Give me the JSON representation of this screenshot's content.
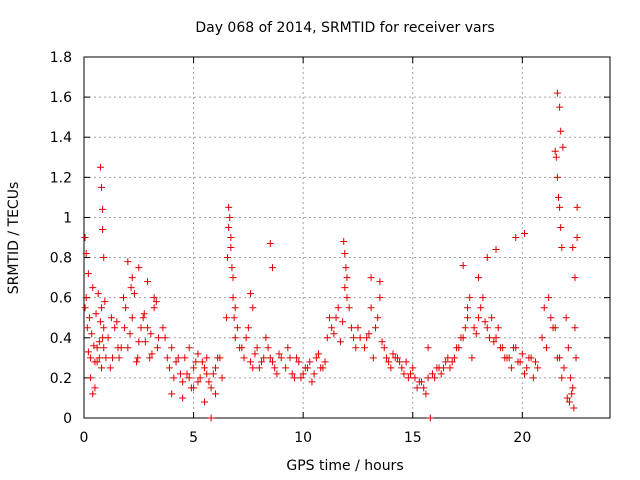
{
  "chart_data": {
    "type": "scatter",
    "title": "Day 068 of 2014, SRMTID for receiver vars",
    "xlabel": "GPS time / hours",
    "ylabel": "SRMTID / TECUs",
    "xlim": [
      0,
      24
    ],
    "ylim": [
      0,
      1.8
    ],
    "x_ticks": [
      0,
      5,
      10,
      15,
      20
    ],
    "y_ticks": [
      0,
      0.2,
      0.4,
      0.6,
      0.8,
      1,
      1.2,
      1.4,
      1.6,
      1.8
    ],
    "x_tick_labels": [
      "0",
      "5",
      "10",
      "15",
      "20"
    ],
    "y_tick_labels": [
      "0",
      "0.2",
      "0.4",
      "0.6",
      "0.8",
      "1",
      "1.2",
      "1.4",
      "1.6",
      "1.8"
    ],
    "grid": true,
    "marker": "+",
    "color": "#e00000",
    "series": [
      {
        "name": "SRMTID",
        "x": [
          0.05,
          0.1,
          0.15,
          0.2,
          0.25,
          0.3,
          0.35,
          0.4,
          0.45,
          0.5,
          0.55,
          0.6,
          0.65,
          0.7,
          0.75,
          0.8,
          0.85,
          0.9,
          0.95,
          1.0,
          0.1,
          0.3,
          0.5,
          0.7,
          0.9,
          0.2,
          0.4,
          0.6,
          0.8,
          0.05,
          0.75,
          0.8,
          0.85,
          0.85,
          0.9,
          1.1,
          1.3,
          1.5,
          1.7,
          1.9,
          2.1,
          2.3,
          2.5,
          2.7,
          2.9,
          3.1,
          3.3,
          1.2,
          1.4,
          1.6,
          1.8,
          2.0,
          2.2,
          2.4,
          2.6,
          2.8,
          3.0,
          3.2,
          3.4,
          1.25,
          1.55,
          1.85,
          2.15,
          2.45,
          2.75,
          3.05,
          3.35,
          2.0,
          2.2,
          2.5,
          2.9,
          3.2,
          3.6,
          3.8,
          4.0,
          4.2,
          4.4,
          4.6,
          4.8,
          5.0,
          5.2,
          5.4,
          5.6,
          5.8,
          6.0,
          6.2,
          3.7,
          3.9,
          4.1,
          4.3,
          4.5,
          4.7,
          4.9,
          5.1,
          5.3,
          5.5,
          5.7,
          5.9,
          6.1,
          6.3,
          4.0,
          4.5,
          5.0,
          5.5,
          6.0,
          4.8,
          5.2,
          5.6,
          5.8,
          6.5,
          6.55,
          6.6,
          6.65,
          6.7,
          6.75,
          6.8,
          6.85,
          6.9,
          6.6,
          6.7,
          6.8,
          6.9,
          7.0,
          7.2,
          7.4,
          7.6,
          7.8,
          8.0,
          8.2,
          8.4,
          8.6,
          8.8,
          9.0,
          7.1,
          7.3,
          7.5,
          7.7,
          7.9,
          8.1,
          8.3,
          8.5,
          8.7,
          8.9,
          7.6,
          7.7,
          8.5,
          8.6,
          9.2,
          9.4,
          9.6,
          9.8,
          10.0,
          10.2,
          10.4,
          10.6,
          10.8,
          11.0,
          9.3,
          9.5,
          9.7,
          9.9,
          10.1,
          10.3,
          10.5,
          10.7,
          10.9,
          11.1,
          11.2,
          11.4,
          11.6,
          11.8,
          12.0,
          12.2,
          12.4,
          12.6,
          11.3,
          11.5,
          11.7,
          11.9,
          12.1,
          12.3,
          12.5,
          11.85,
          11.9,
          11.95,
          12.0,
          12.8,
          13.0,
          13.2,
          13.4,
          13.6,
          13.8,
          14.0,
          14.2,
          12.9,
          13.1,
          13.3,
          13.5,
          13.7,
          13.9,
          14.1,
          13.1,
          13.5,
          14.3,
          14.5,
          14.7,
          14.9,
          15.1,
          15.3,
          15.5,
          15.7,
          15.9,
          16.1,
          14.4,
          14.6,
          14.8,
          15.0,
          15.2,
          15.4,
          15.6,
          15.8,
          16.0,
          16.2,
          15.7,
          16.3,
          16.5,
          16.7,
          16.9,
          17.1,
          17.3,
          17.5,
          17.7,
          16.4,
          16.6,
          16.8,
          17.0,
          17.2,
          17.4,
          17.6,
          17.3,
          17.5,
          17.8,
          18.0,
          18.2,
          18.4,
          18.6,
          18.8,
          19.0,
          19.2,
          17.9,
          18.1,
          18.3,
          18.5,
          18.7,
          18.9,
          19.1,
          18.0,
          18.4,
          18.8,
          19.3,
          19.5,
          19.7,
          19.9,
          20.1,
          20.3,
          20.5,
          20.7,
          19.4,
          19.6,
          19.8,
          20.0,
          20.2,
          20.4,
          20.6,
          19.7,
          20.1,
          20.9,
          21.1,
          21.3,
          21.5,
          21.7,
          21.9,
          21.0,
          21.2,
          21.4,
          21.6,
          21.8,
          21.5,
          21.55,
          21.6,
          21.65,
          21.7,
          21.75,
          21.8,
          21.6,
          21.7,
          21.75,
          21.85,
          22.0,
          22.1,
          22.2,
          22.3,
          22.4,
          22.05,
          22.15,
          22.25,
          22.35,
          22.45,
          22.3,
          22.4,
          22.5,
          22.5
        ],
        "y": [
          0.55,
          0.82,
          0.45,
          0.33,
          0.5,
          0.3,
          0.42,
          0.65,
          0.36,
          0.28,
          0.52,
          0.35,
          0.62,
          0.3,
          0.48,
          0.25,
          0.4,
          0.35,
          0.58,
          0.3,
          0.6,
          0.2,
          0.15,
          0.38,
          0.45,
          0.72,
          0.12,
          0.28,
          0.55,
          0.9,
          1.25,
          1.15,
          1.04,
          0.94,
          0.8,
          0.4,
          0.3,
          0.48,
          0.35,
          0.55,
          0.42,
          0.62,
          0.38,
          0.5,
          0.45,
          0.32,
          0.58,
          0.25,
          0.45,
          0.3,
          0.6,
          0.35,
          0.5,
          0.28,
          0.45,
          0.38,
          0.3,
          0.55,
          0.4,
          0.5,
          0.35,
          0.45,
          0.65,
          0.3,
          0.52,
          0.42,
          0.35,
          0.78,
          0.7,
          0.75,
          0.68,
          0.6,
          0.45,
          0.3,
          0.35,
          0.28,
          0.22,
          0.3,
          0.2,
          0.25,
          0.18,
          0.28,
          0.22,
          0.15,
          0.25,
          0.3,
          0.4,
          0.25,
          0.2,
          0.3,
          0.18,
          0.22,
          0.15,
          0.28,
          0.2,
          0.25,
          0.18,
          0.22,
          0.3,
          0.2,
          0.12,
          0.1,
          0.15,
          0.08,
          0.12,
          0.35,
          0.32,
          0.3,
          0.0,
          0.5,
          0.8,
          1.05,
          1.0,
          0.9,
          0.75,
          0.6,
          0.5,
          0.4,
          0.95,
          0.85,
          0.7,
          0.55,
          0.45,
          0.35,
          0.4,
          0.28,
          0.32,
          0.25,
          0.3,
          0.35,
          0.28,
          0.22,
          0.3,
          0.35,
          0.3,
          0.45,
          0.25,
          0.35,
          0.28,
          0.4,
          0.3,
          0.25,
          0.32,
          0.62,
          0.55,
          0.87,
          0.75,
          0.25,
          0.3,
          0.2,
          0.28,
          0.22,
          0.25,
          0.18,
          0.3,
          0.25,
          0.28,
          0.35,
          0.22,
          0.3,
          0.2,
          0.25,
          0.28,
          0.22,
          0.32,
          0.25,
          0.4,
          0.5,
          0.42,
          0.55,
          0.48,
          0.6,
          0.45,
          0.35,
          0.4,
          0.45,
          0.5,
          0.38,
          0.65,
          0.55,
          0.4,
          0.45,
          0.88,
          0.82,
          0.75,
          0.7,
          0.35,
          0.42,
          0.3,
          0.5,
          0.38,
          0.3,
          0.25,
          0.3,
          0.4,
          0.55,
          0.45,
          0.6,
          0.35,
          0.28,
          0.32,
          0.7,
          0.68,
          0.3,
          0.25,
          0.28,
          0.22,
          0.2,
          0.18,
          0.15,
          0.2,
          0.22,
          0.25,
          0.28,
          0.22,
          0.2,
          0.25,
          0.15,
          0.18,
          0.12,
          0.0,
          0.2,
          0.25,
          0.35,
          0.22,
          0.28,
          0.25,
          0.3,
          0.35,
          0.4,
          0.5,
          0.3,
          0.25,
          0.3,
          0.28,
          0.35,
          0.4,
          0.45,
          0.6,
          0.76,
          0.55,
          0.45,
          0.5,
          0.6,
          0.45,
          0.5,
          0.4,
          0.35,
          0.3,
          0.42,
          0.55,
          0.48,
          0.4,
          0.38,
          0.45,
          0.35,
          0.7,
          0.8,
          0.84,
          0.3,
          0.25,
          0.35,
          0.28,
          0.22,
          0.3,
          0.2,
          0.25,
          0.3,
          0.35,
          0.28,
          0.32,
          0.25,
          0.3,
          0.28,
          0.9,
          0.92,
          0.4,
          0.35,
          0.5,
          0.45,
          0.3,
          0.25,
          0.55,
          0.6,
          0.45,
          0.3,
          0.2,
          1.33,
          1.3,
          1.2,
          1.1,
          1.05,
          0.95,
          0.85,
          1.62,
          1.55,
          1.43,
          1.35,
          0.5,
          0.35,
          0.2,
          0.15,
          0.45,
          0.1,
          0.08,
          0.12,
          0.05,
          0.3,
          0.85,
          0.7,
          0.9,
          1.05
        ]
      }
    ]
  }
}
